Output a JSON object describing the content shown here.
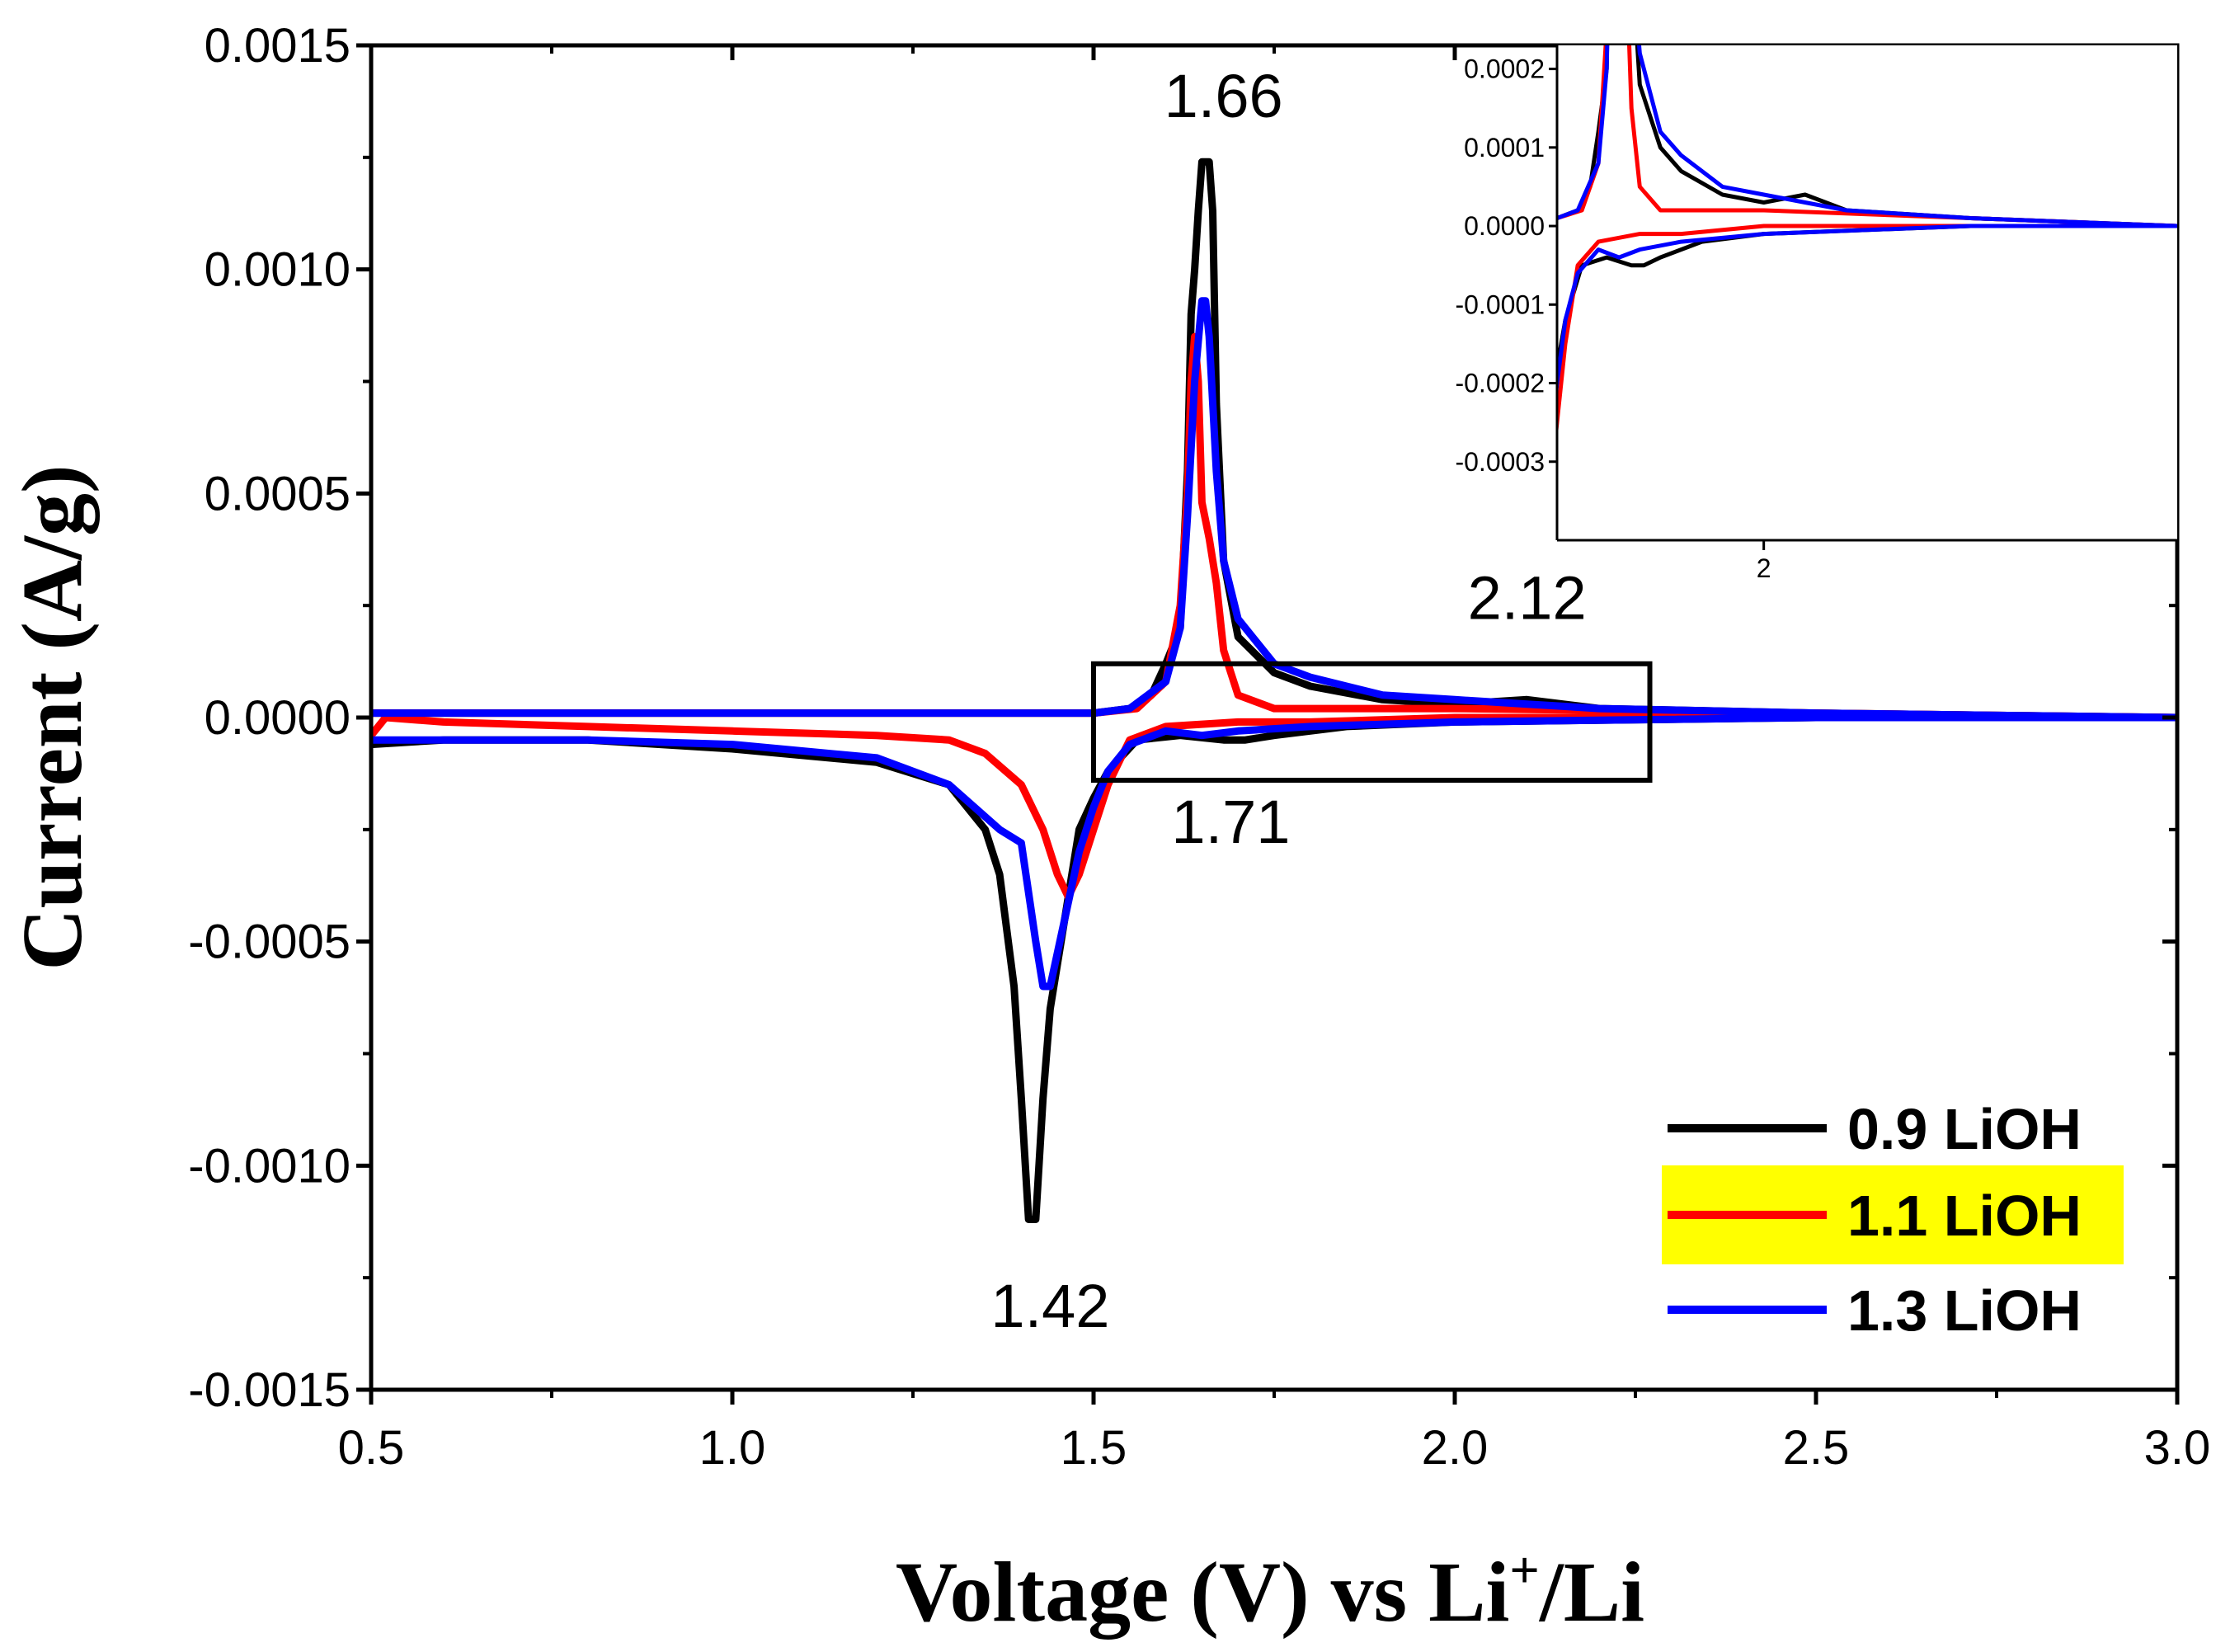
{
  "chart_data": {
    "type": "line",
    "title": "",
    "xlabel": "Voltage (V) vs Li",
    "xlabel_sup": "+",
    "xlabel_suffix": "/Li",
    "ylabel": "Current (A/g)",
    "xlim": [
      0.5,
      3.0
    ],
    "ylim": [
      -0.0015,
      0.0015
    ],
    "xticks": [
      "0.5",
      "1.0",
      "1.5",
      "2.0",
      "2.5",
      "3.0"
    ],
    "yticks": [
      "0.0015",
      "0.0010",
      "0.0005",
      "0.0000",
      "-0.0005",
      "-0.0010",
      "-0.0015"
    ],
    "grid": false,
    "legend_position": "bottom-right",
    "series": [
      {
        "name": "0.9 LiOH",
        "color": "#000000",
        "anodic": [
          [
            0.5,
            1e-05
          ],
          [
            0.8,
            1e-05
          ],
          [
            1.0,
            1e-05
          ],
          [
            1.2,
            1e-05
          ],
          [
            1.4,
            1e-05
          ],
          [
            1.5,
            1e-05
          ],
          [
            1.55,
            2e-05
          ],
          [
            1.58,
            5e-05
          ],
          [
            1.6,
            0.00012
          ],
          [
            1.62,
            0.0002
          ],
          [
            1.63,
            0.00055
          ],
          [
            1.635,
            0.0009
          ],
          [
            1.64,
            0.001
          ],
          [
            1.645,
            0.00113
          ],
          [
            1.65,
            0.00124
          ],
          [
            1.66,
            0.00124
          ],
          [
            1.665,
            0.00113
          ],
          [
            1.67,
            0.0007
          ],
          [
            1.68,
            0.00035
          ],
          [
            1.7,
            0.00018
          ],
          [
            1.75,
            0.0001
          ],
          [
            1.8,
            7e-05
          ],
          [
            1.9,
            4e-05
          ],
          [
            2.0,
            3e-05
          ],
          [
            2.1,
            4e-05
          ],
          [
            2.2,
            2e-05
          ],
          [
            2.5,
            1e-05
          ],
          [
            3.0,
            0.0
          ]
        ],
        "cathodic": [
          [
            3.0,
            0.0
          ],
          [
            2.5,
            0.0
          ],
          [
            2.0,
            -1e-05
          ],
          [
            1.85,
            -2e-05
          ],
          [
            1.75,
            -4e-05
          ],
          [
            1.71,
            -5e-05
          ],
          [
            1.68,
            -5e-05
          ],
          [
            1.62,
            -4e-05
          ],
          [
            1.56,
            -5e-05
          ],
          [
            1.52,
            -0.00012
          ],
          [
            1.5,
            -0.00018
          ],
          [
            1.48,
            -0.00025
          ],
          [
            1.46,
            -0.00045
          ],
          [
            1.44,
            -0.00065
          ],
          [
            1.43,
            -0.00085
          ],
          [
            1.42,
            -0.00112
          ],
          [
            1.41,
            -0.00112
          ],
          [
            1.4,
            -0.00085
          ],
          [
            1.39,
            -0.0006
          ],
          [
            1.37,
            -0.00035
          ],
          [
            1.35,
            -0.00025
          ],
          [
            1.3,
            -0.00015
          ],
          [
            1.2,
            -0.0001
          ],
          [
            1.0,
            -7e-05
          ],
          [
            0.8,
            -5e-05
          ],
          [
            0.6,
            -5e-05
          ],
          [
            0.5,
            -6e-05
          ]
        ]
      },
      {
        "name": "1.1 LiOH",
        "color": "#ff0000",
        "anodic": [
          [
            0.5,
            1e-05
          ],
          [
            0.8,
            1e-05
          ],
          [
            1.0,
            1e-05
          ],
          [
            1.2,
            1e-05
          ],
          [
            1.4,
            1e-05
          ],
          [
            1.5,
            1e-05
          ],
          [
            1.56,
            2e-05
          ],
          [
            1.6,
            8e-05
          ],
          [
            1.62,
            0.00025
          ],
          [
            1.63,
            0.0005
          ],
          [
            1.635,
            0.00075
          ],
          [
            1.64,
            0.00085
          ],
          [
            1.645,
            0.00075
          ],
          [
            1.65,
            0.00048
          ],
          [
            1.66,
            0.0004
          ],
          [
            1.67,
            0.0003
          ],
          [
            1.68,
            0.00015
          ],
          [
            1.7,
            5e-05
          ],
          [
            1.75,
            2e-05
          ],
          [
            1.8,
            2e-05
          ],
          [
            2.0,
            2e-05
          ],
          [
            2.5,
            1e-05
          ],
          [
            3.0,
            0.0
          ]
        ],
        "cathodic": [
          [
            3.0,
            0.0
          ],
          [
            2.5,
            0.0
          ],
          [
            2.0,
            0.0
          ],
          [
            1.8,
            -1e-05
          ],
          [
            1.7,
            -1e-05
          ],
          [
            1.6,
            -2e-05
          ],
          [
            1.55,
            -5e-05
          ],
          [
            1.52,
            -0.00015
          ],
          [
            1.5,
            -0.00025
          ],
          [
            1.48,
            -0.00035
          ],
          [
            1.465,
            -0.0004
          ],
          [
            1.45,
            -0.00035
          ],
          [
            1.43,
            -0.00025
          ],
          [
            1.4,
            -0.00015
          ],
          [
            1.35,
            -8e-05
          ],
          [
            1.3,
            -5e-05
          ],
          [
            1.2,
            -4e-05
          ],
          [
            1.0,
            -3e-05
          ],
          [
            0.8,
            -2e-05
          ],
          [
            0.6,
            -1e-05
          ],
          [
            0.52,
            0.0
          ],
          [
            0.5,
            -4e-05
          ]
        ]
      },
      {
        "name": "1.3 LiOH",
        "color": "#0000ff",
        "anodic": [
          [
            0.5,
            1e-05
          ],
          [
            0.8,
            1e-05
          ],
          [
            1.0,
            1e-05
          ],
          [
            1.2,
            1e-05
          ],
          [
            1.4,
            1e-05
          ],
          [
            1.5,
            1e-05
          ],
          [
            1.55,
            2e-05
          ],
          [
            1.6,
            8e-05
          ],
          [
            1.62,
            0.0002
          ],
          [
            1.63,
            0.00045
          ],
          [
            1.64,
            0.00075
          ],
          [
            1.65,
            0.00093
          ],
          [
            1.655,
            0.00093
          ],
          [
            1.66,
            0.00085
          ],
          [
            1.67,
            0.00055
          ],
          [
            1.68,
            0.00035
          ],
          [
            1.7,
            0.00022
          ],
          [
            1.75,
            0.00012
          ],
          [
            1.8,
            9e-05
          ],
          [
            1.9,
            5e-05
          ],
          [
            2.0,
            4e-05
          ],
          [
            2.1,
            3e-05
          ],
          [
            2.2,
            2e-05
          ],
          [
            2.5,
            1e-05
          ],
          [
            3.0,
            0.0
          ]
        ],
        "cathodic": [
          [
            3.0,
            0.0
          ],
          [
            2.5,
            0.0
          ],
          [
            2.0,
            -1e-05
          ],
          [
            1.8,
            -2e-05
          ],
          [
            1.7,
            -3e-05
          ],
          [
            1.65,
            -4e-05
          ],
          [
            1.6,
            -3e-05
          ],
          [
            1.55,
            -6e-05
          ],
          [
            1.52,
            -0.00012
          ],
          [
            1.5,
            -0.0002
          ],
          [
            1.48,
            -0.0003
          ],
          [
            1.46,
            -0.00045
          ],
          [
            1.44,
            -0.0006
          ],
          [
            1.43,
            -0.0006
          ],
          [
            1.42,
            -0.0005
          ],
          [
            1.4,
            -0.00028
          ],
          [
            1.37,
            -0.00025
          ],
          [
            1.3,
            -0.00015
          ],
          [
            1.2,
            -9e-05
          ],
          [
            1.0,
            -6e-05
          ],
          [
            0.8,
            -5e-05
          ],
          [
            0.6,
            -5e-05
          ],
          [
            0.5,
            -5e-05
          ]
        ]
      }
    ],
    "annotations": [
      {
        "text": "1.66",
        "x": 1.68,
        "y": 0.00134
      },
      {
        "text": "1.42",
        "x": 1.44,
        "y": -0.00136
      },
      {
        "text": "1.71",
        "x": 1.69,
        "y": -0.00028
      },
      {
        "text": "2.12",
        "x": 2.1,
        "y": 0.00022
      }
    ],
    "zoom_box": {
      "xlim": [
        1.5,
        2.27
      ],
      "ylim": [
        -0.00014,
        0.00012
      ]
    },
    "inset": {
      "xlim": [
        1.5,
        3.0
      ],
      "ylim": [
        -0.0004,
        0.00023
      ],
      "xticks": [
        "2"
      ],
      "yticks": [
        "0.0002",
        "0.0001",
        "0.0000",
        "-0.0001",
        "-0.0002",
        "-0.0003"
      ]
    }
  }
}
